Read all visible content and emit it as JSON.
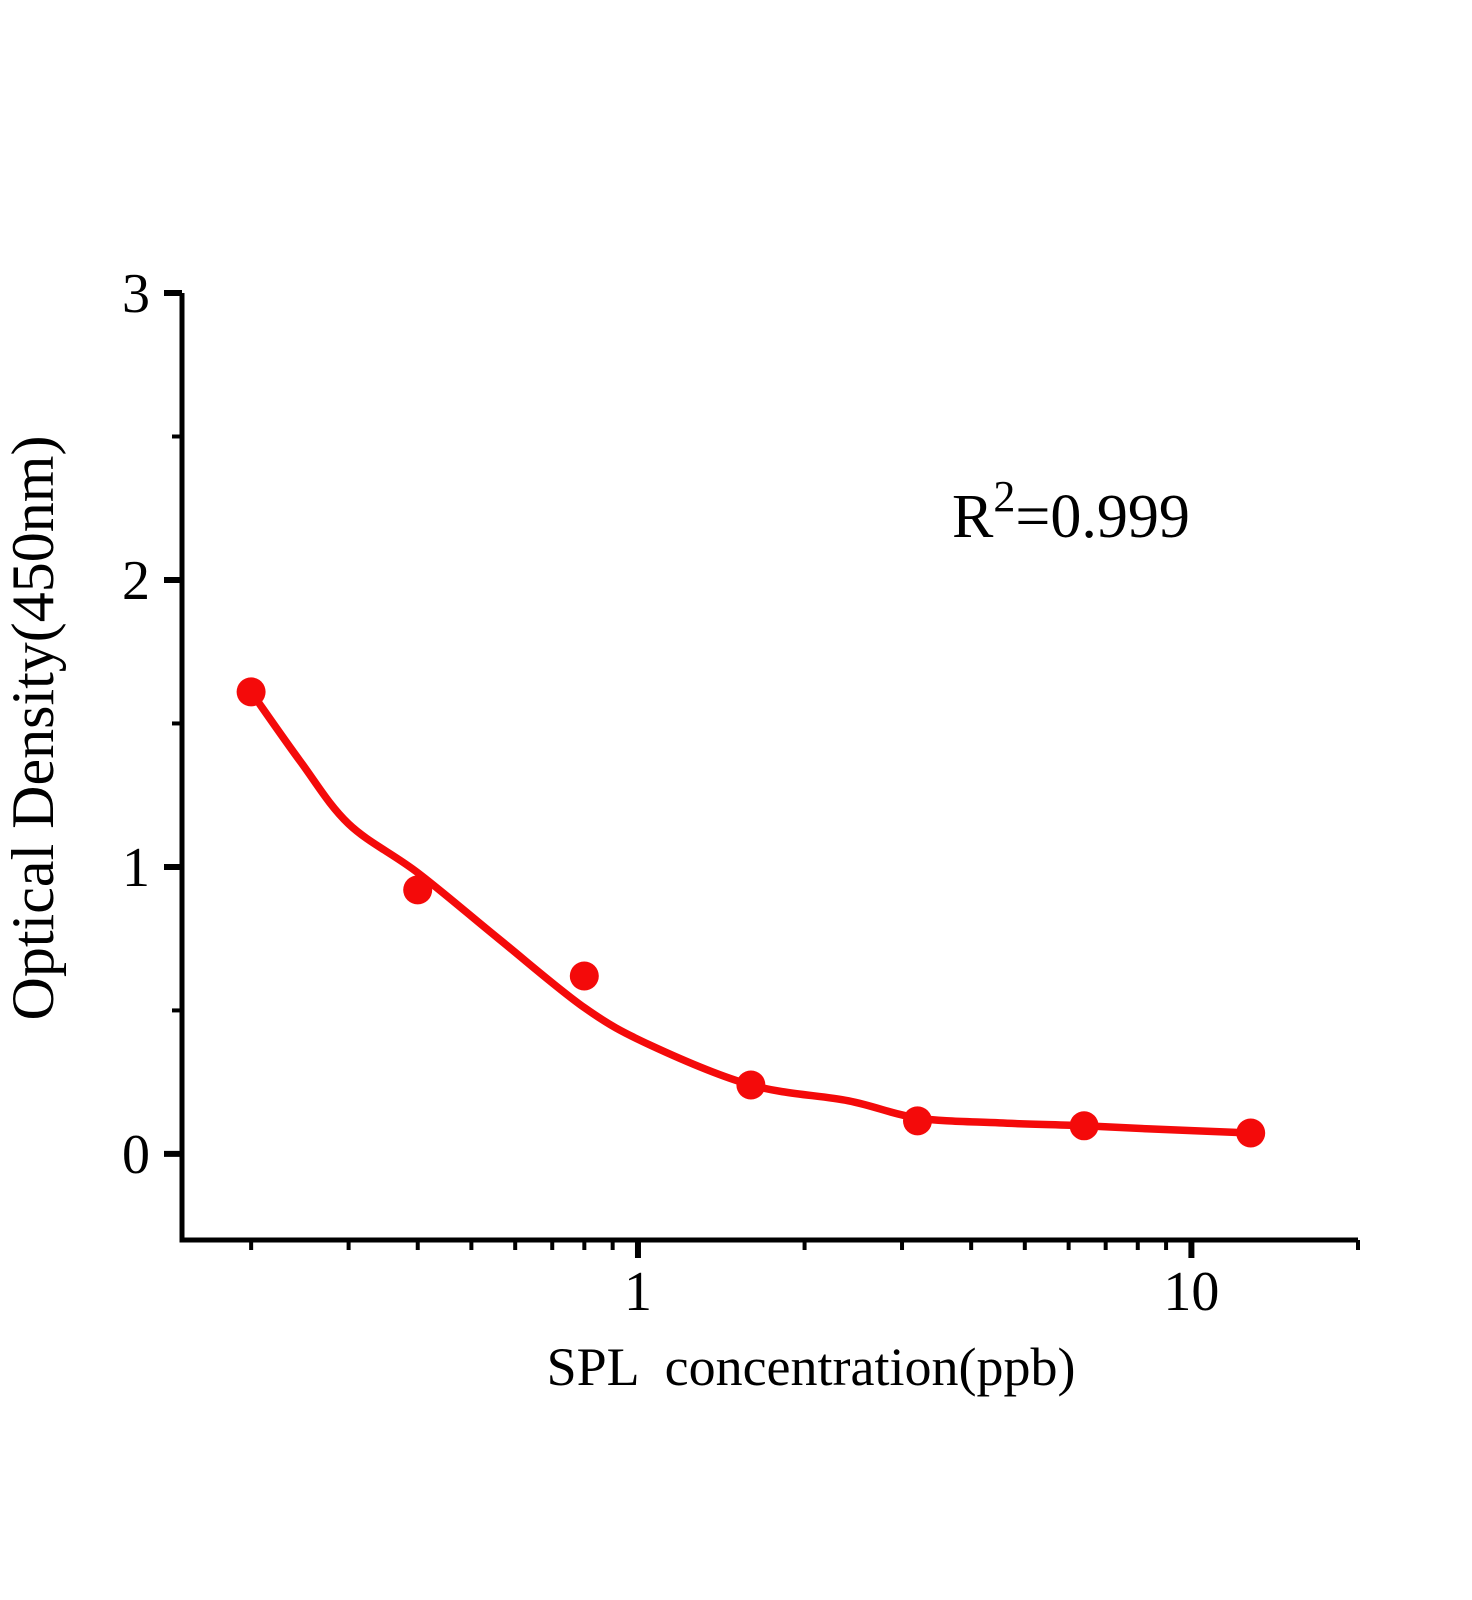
{
  "annotation": {
    "base": "R",
    "exponent": "2",
    "value": "=0.999"
  },
  "chart_data": {
    "type": "scatter",
    "title": "",
    "xlabel": "SPL  concentration(ppb)",
    "ylabel": "Optical Density(450nm)",
    "x_scale": "log",
    "y_scale": "linear",
    "xlim": [
      0.15,
      20
    ],
    "ylim": [
      -0.3,
      3
    ],
    "x_major_ticks": [
      1,
      10
    ],
    "x_minor_ticks": [
      0.2,
      0.3,
      0.4,
      0.5,
      0.6,
      0.7,
      0.8,
      0.9,
      2,
      3,
      4,
      5,
      6,
      7,
      8,
      9,
      20
    ],
    "y_major_ticks": [
      0,
      1,
      2,
      3
    ],
    "y_minor_ticks": [
      0.5,
      1.5,
      2.5
    ],
    "grid": false,
    "legend": "none",
    "annotation_text": "R2=0.999",
    "r_squared": "0.999",
    "colors": {
      "series": "#f40a0a",
      "axis": "#000000",
      "text": "#000000",
      "background": "#ffffff"
    },
    "series": [
      {
        "name": "standard points",
        "type": "scatter",
        "marker": "circle",
        "x": [
          0.2,
          0.4,
          0.8,
          1.6,
          3.2,
          6.4,
          12.8
        ],
        "y": [
          1.61,
          0.92,
          0.62,
          0.24,
          0.115,
          0.098,
          0.073
        ]
      },
      {
        "name": "fit curve",
        "type": "line",
        "x": [
          0.2,
          0.245,
          0.3,
          0.4,
          0.56,
          0.8,
          1.05,
          1.6,
          2.4,
          3.2,
          4.5,
          6.4,
          8.4,
          12.8
        ],
        "y": [
          1.61,
          1.37,
          1.15,
          0.98,
          0.75,
          0.51,
          0.38,
          0.24,
          0.185,
          0.125,
          0.108,
          0.098,
          0.087,
          0.073
        ]
      }
    ]
  }
}
